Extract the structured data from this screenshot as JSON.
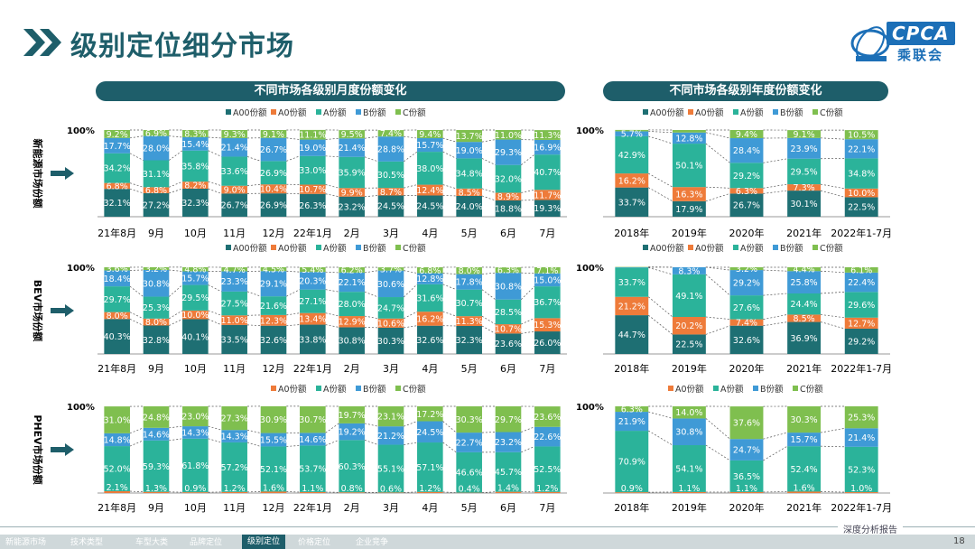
{
  "page": {
    "title": "级别定位细分市场",
    "logo_text": "CPCA",
    "logo_sub": "乘联会",
    "left_banner": "不同市场各级别月度份额变化",
    "right_banner": "不同市场各级别年度份额变化",
    "footer": "深度分析报告",
    "page_number": "18"
  },
  "nav": [
    {
      "label": "新能源市场",
      "active": false
    },
    {
      "label": "技术类型",
      "active": false
    },
    {
      "label": "车型大类",
      "active": false
    },
    {
      "label": "品牌定位",
      "active": false
    },
    {
      "label": "级别定位",
      "active": true
    },
    {
      "label": "价格定位",
      "active": false
    },
    {
      "label": "企业竞争",
      "active": false
    }
  ],
  "colors": {
    "A00份额": "#1e6f73",
    "A0份额": "#ee7b3a",
    "A份额": "#2bb39a",
    "B份额": "#3f9ad6",
    "C份额": "#7fbf4f",
    "title": "#1e5e6a"
  },
  "row_labels": [
    "新能源市场份额",
    "BEV市场份额",
    "PHEV市场份额"
  ],
  "chart_data": [
    {
      "type": "bar",
      "stacked": "percent",
      "ytick_top": "100%",
      "legend": [
        "A00份额",
        "A0份额",
        "A份额",
        "B份额",
        "C份额"
      ],
      "categories": [
        "21年8月",
        "9月",
        "10月",
        "11月",
        "12月",
        "22年1月",
        "2月",
        "3月",
        "4月",
        "5月",
        "6月",
        "7月"
      ],
      "series": [
        {
          "name": "A00份额",
          "values": [
            32.1,
            27.2,
            32.3,
            26.7,
            26.9,
            26.3,
            23.2,
            24.5,
            24.5,
            24.0,
            18.8,
            19.3
          ]
        },
        {
          "name": "A0份额",
          "values": [
            6.8,
            6.8,
            8.2,
            9.0,
            10.4,
            10.7,
            9.9,
            8.7,
            12.4,
            8.5,
            8.9,
            11.7
          ]
        },
        {
          "name": "A份额",
          "values": [
            34.2,
            31.1,
            35.8,
            33.6,
            26.9,
            33.0,
            35.9,
            30.5,
            38.0,
            34.8,
            32.0,
            40.7
          ]
        },
        {
          "name": "B份额",
          "values": [
            17.7,
            28.0,
            15.4,
            21.4,
            26.7,
            19.0,
            21.4,
            28.8,
            15.7,
            19.0,
            29.3,
            16.9
          ]
        },
        {
          "name": "C份额",
          "values": [
            9.2,
            6.9,
            8.3,
            9.3,
            9.1,
            11.1,
            9.5,
            7.4,
            9.4,
            13.7,
            11.0,
            11.3
          ]
        }
      ]
    },
    {
      "type": "bar",
      "stacked": "percent",
      "ytick_top": "100%",
      "legend": [
        "A00份额",
        "A0份额",
        "A份额",
        "B份额",
        "C份额"
      ],
      "categories": [
        "2018年",
        "2019年",
        "2020年",
        "2021年",
        "2022年1-7月"
      ],
      "series": [
        {
          "name": "A00份额",
          "values": [
            33.7,
            17.9,
            26.7,
            30.1,
            22.5
          ]
        },
        {
          "name": "A0份额",
          "values": [
            16.2,
            16.3,
            6.3,
            7.3,
            10.0
          ]
        },
        {
          "name": "A份额",
          "values": [
            42.9,
            50.1,
            29.2,
            29.5,
            34.8
          ]
        },
        {
          "name": "B份额",
          "values": [
            5.7,
            12.8,
            28.4,
            23.9,
            22.1
          ]
        },
        {
          "name": "C份额",
          "values": [
            1.6,
            2.9,
            9.4,
            9.1,
            10.5
          ]
        }
      ]
    },
    {
      "type": "bar",
      "stacked": "percent",
      "ytick_top": "100%",
      "legend": [
        "A00份额",
        "A0份额",
        "A份额",
        "B份额",
        "C份额"
      ],
      "categories": [
        "21年8月",
        "9月",
        "10月",
        "11月",
        "12月",
        "22年1月",
        "2月",
        "3月",
        "4月",
        "5月",
        "6月",
        "7月"
      ],
      "series": [
        {
          "name": "A00份额",
          "values": [
            40.3,
            32.8,
            40.1,
            33.5,
            32.6,
            33.8,
            30.8,
            30.3,
            32.6,
            32.3,
            23.6,
            26.0
          ]
        },
        {
          "name": "A0份额",
          "values": [
            8.0,
            8.0,
            10.0,
            11.0,
            12.3,
            13.4,
            12.9,
            10.6,
            16.2,
            11.3,
            10.7,
            15.3
          ]
        },
        {
          "name": "A份额",
          "values": [
            29.7,
            25.3,
            29.5,
            27.5,
            21.6,
            27.1,
            28.0,
            24.7,
            31.6,
            30.7,
            28.5,
            36.7
          ]
        },
        {
          "name": "B份额",
          "values": [
            18.4,
            30.8,
            15.7,
            23.3,
            29.1,
            20.3,
            22.1,
            30.6,
            12.8,
            17.8,
            30.8,
            15.0
          ]
        },
        {
          "name": "C份额",
          "values": [
            3.6,
            3.2,
            4.8,
            4.7,
            4.5,
            5.4,
            6.2,
            3.7,
            6.8,
            8.0,
            6.3,
            7.1
          ]
        }
      ]
    },
    {
      "type": "bar",
      "stacked": "percent",
      "ytick_top": "100%",
      "legend": [
        "A00份额",
        "A0份额",
        "A份额",
        "B份额",
        "C份额"
      ],
      "categories": [
        "2018年",
        "2019年",
        "2020年",
        "2021年",
        "2022年1-7月"
      ],
      "series": [
        {
          "name": "A00份额",
          "values": [
            44.7,
            22.5,
            32.6,
            36.9,
            29.2
          ]
        },
        {
          "name": "A0份额",
          "values": [
            21.2,
            20.2,
            7.4,
            8.5,
            12.7
          ]
        },
        {
          "name": "A份额",
          "values": [
            33.7,
            49.1,
            27.6,
            24.4,
            29.6
          ]
        },
        {
          "name": "B份额",
          "values": [
            0.4,
            8.3,
            29.2,
            25.8,
            22.4
          ]
        },
        {
          "name": "C份额",
          "values": [
            0.4,
            0.0,
            3.2,
            4.4,
            6.1
          ]
        }
      ]
    },
    {
      "type": "bar",
      "stacked": "percent",
      "ytick_top": "100%",
      "legend": [
        "A0份额",
        "A份额",
        "B份额",
        "C份额"
      ],
      "categories": [
        "21年8月",
        "9月",
        "10月",
        "11月",
        "12月",
        "22年1月",
        "2月",
        "3月",
        "4月",
        "5月",
        "6月",
        "7月"
      ],
      "series": [
        {
          "name": "A0份额",
          "values": [
            2.1,
            1.3,
            0.9,
            1.2,
            1.6,
            1.1,
            0.8,
            0.6,
            1.2,
            0.4,
            1.4,
            1.2
          ]
        },
        {
          "name": "A份额",
          "values": [
            52.0,
            59.3,
            61.8,
            57.2,
            52.1,
            53.7,
            60.3,
            55.1,
            57.1,
            46.6,
            45.7,
            52.5
          ]
        },
        {
          "name": "B份额",
          "values": [
            14.8,
            14.6,
            14.3,
            14.3,
            15.5,
            14.6,
            19.2,
            21.2,
            24.5,
            22.7,
            23.2,
            22.6
          ]
        },
        {
          "name": "C份额",
          "values": [
            31.0,
            24.8,
            23.0,
            27.3,
            30.9,
            30.7,
            19.7,
            23.1,
            17.2,
            30.3,
            29.7,
            23.6
          ]
        }
      ]
    },
    {
      "type": "bar",
      "stacked": "percent",
      "ytick_top": "100%",
      "legend": [
        "A0份额",
        "A份额",
        "B份额",
        "C份额"
      ],
      "categories": [
        "2018年",
        "2019年",
        "2020年",
        "2021年",
        "2022年1-7月"
      ],
      "series": [
        {
          "name": "A0份额",
          "values": [
            0.9,
            1.1,
            1.1,
            1.6,
            1.0
          ]
        },
        {
          "name": "A份额",
          "values": [
            70.9,
            54.1,
            36.5,
            52.4,
            52.3
          ]
        },
        {
          "name": "B份额",
          "values": [
            21.9,
            30.8,
            24.7,
            15.7,
            21.4
          ]
        },
        {
          "name": "C份额",
          "values": [
            6.3,
            14.0,
            37.6,
            30.3,
            25.3
          ]
        }
      ]
    }
  ]
}
